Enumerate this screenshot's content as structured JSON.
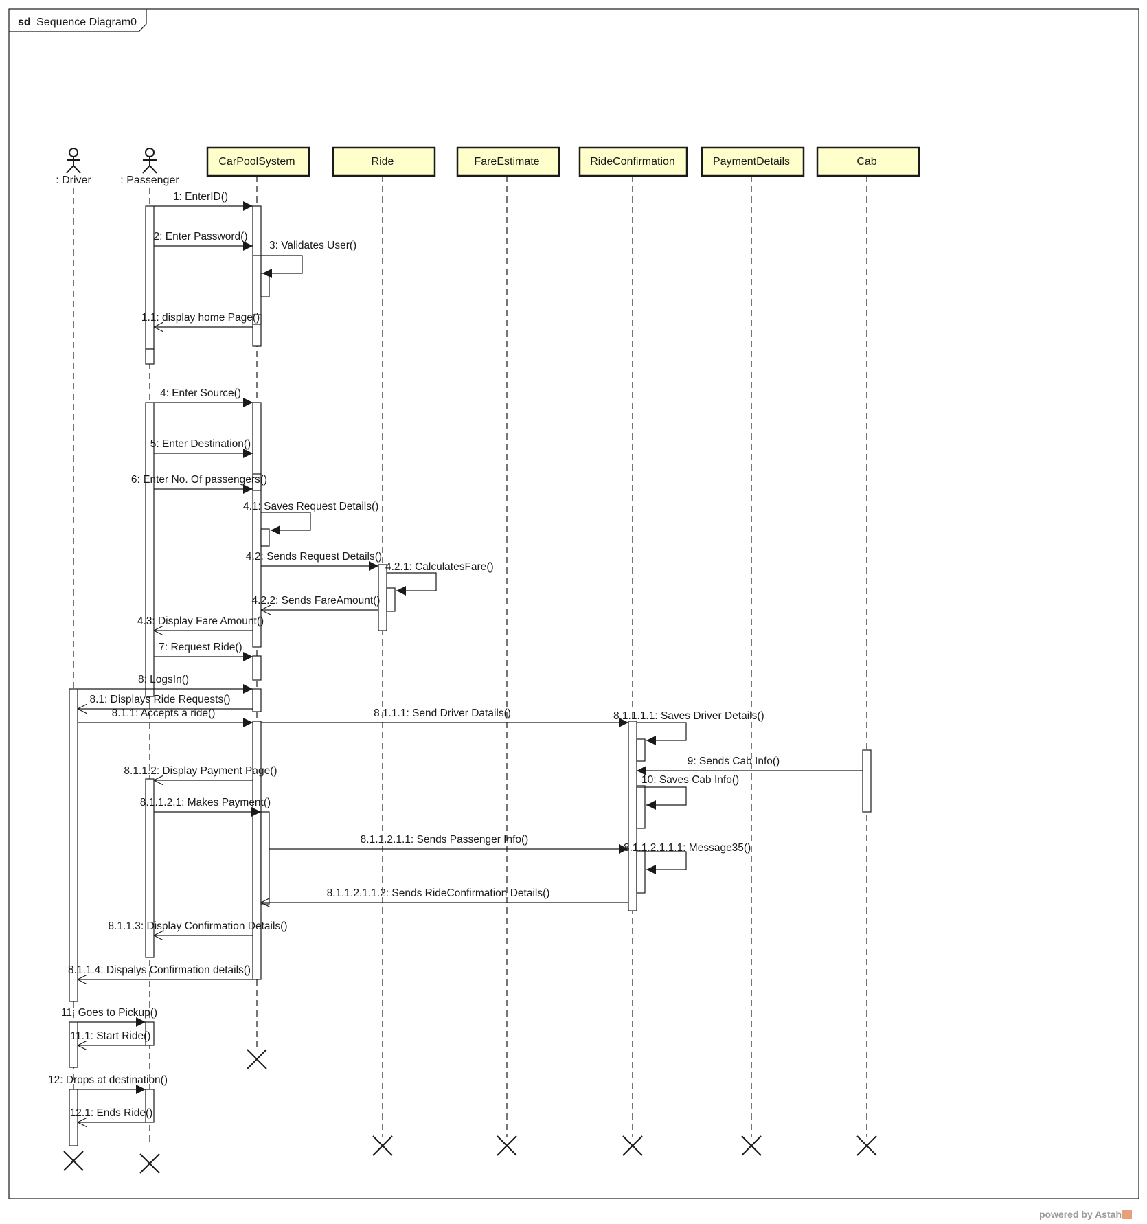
{
  "frame": {
    "keyword": "sd",
    "name": "Sequence Diagram0"
  },
  "lifelines": [
    {
      "id": "driver",
      "label": ": Driver",
      "kind": "actor"
    },
    {
      "id": "passenger",
      "label": ": Passenger",
      "kind": "actor"
    },
    {
      "id": "carpool",
      "label": "CarPoolSystem",
      "kind": "object"
    },
    {
      "id": "ride",
      "label": "Ride",
      "kind": "object"
    },
    {
      "id": "fare",
      "label": "FareEstimate",
      "kind": "object"
    },
    {
      "id": "rideconf",
      "label": "RideConfirmation",
      "kind": "object"
    },
    {
      "id": "payment",
      "label": "PaymentDetails",
      "kind": "object"
    },
    {
      "id": "cab",
      "label": "Cab",
      "kind": "object"
    }
  ],
  "messages": [
    {
      "label": "1: EnterID()",
      "kind": "sync"
    },
    {
      "label": "2: Enter Password()",
      "kind": "sync"
    },
    {
      "label": "3: Validates User()",
      "kind": "self"
    },
    {
      "label": "1.1: display home Page()",
      "kind": "reply"
    },
    {
      "label": "4: Enter Source()",
      "kind": "sync"
    },
    {
      "label": "5: Enter Destination()",
      "kind": "sync"
    },
    {
      "label": "6: Enter No. Of passengers()",
      "kind": "sync"
    },
    {
      "label": "4.1: Saves Request Details()",
      "kind": "self"
    },
    {
      "label": "4.2: Sends Request Details()",
      "kind": "sync"
    },
    {
      "label": "4.2.1: CalculatesFare()",
      "kind": "self"
    },
    {
      "label": "4.2.2: Sends FareAmount()",
      "kind": "reply"
    },
    {
      "label": "4.3: Display Fare Amount()",
      "kind": "reply"
    },
    {
      "label": "7: Request Ride()",
      "kind": "sync"
    },
    {
      "label": "8: LogsIn()",
      "kind": "sync"
    },
    {
      "label": "8.1: Displays Ride Requests()",
      "kind": "reply"
    },
    {
      "label": "8.1.1: Accepts a ride()",
      "kind": "sync"
    },
    {
      "label": "8.1.1.1: Send Driver Datails()",
      "kind": "sync"
    },
    {
      "label": "8.1.1.1.1: Saves Driver Details()",
      "kind": "self"
    },
    {
      "label": "9: Sends Cab Info()",
      "kind": "sync"
    },
    {
      "label": "10: Saves Cab Info()",
      "kind": "self"
    },
    {
      "label": "8.1.1.2: Display Payment Page()",
      "kind": "reply"
    },
    {
      "label": "8.1.1.2.1: Makes Payment()",
      "kind": "sync"
    },
    {
      "label": "8.1.1.2.1.1: Sends Passenger Info()",
      "kind": "sync"
    },
    {
      "label": "8.1.1.2.1.1.1: Message35()",
      "kind": "self"
    },
    {
      "label": "8.1.1.2.1.1.2: Sends RideConfirmation Details()",
      "kind": "reply"
    },
    {
      "label": "8.1.1.3: Display Confirmation Details()",
      "kind": "reply"
    },
    {
      "label": "8.1.1.4: Dispalys Confirmation details()",
      "kind": "reply"
    },
    {
      "label": "11: Goes to Pickup()",
      "kind": "sync"
    },
    {
      "label": "11.1: Start Ride()",
      "kind": "reply"
    },
    {
      "label": "12: Drops at destination()",
      "kind": "sync"
    },
    {
      "label": "12.1: Ends Ride()",
      "kind": "reply"
    }
  ],
  "colors": {
    "object_fill": "#ffffcc",
    "line": "#1a1a1a"
  },
  "footer": {
    "text": "powered by Astah"
  }
}
